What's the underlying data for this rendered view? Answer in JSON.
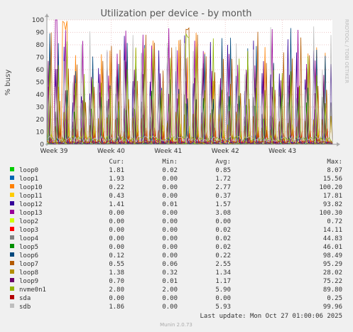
{
  "chart_data": {
    "type": "line",
    "title": "Utilization per device - by month",
    "ylabel": "% busy",
    "side_label": "RRDTOOL / TOBI OETIKER",
    "ylim": [
      0,
      100
    ],
    "yticks": [
      0,
      10,
      20,
      30,
      40,
      50,
      60,
      70,
      80,
      90,
      100
    ],
    "x_ticks": [
      "Week 39",
      "Week 40",
      "Week 41",
      "Week 42",
      "Week 43"
    ],
    "grid": true,
    "columns": [
      "Cur:",
      "Min:",
      "Avg:",
      "Max:"
    ],
    "series": [
      {
        "name": "loop0",
        "color": "#00cc00",
        "cur": "1.81",
        "min": "0.02",
        "avg": "0.85",
        "max": "8.07"
      },
      {
        "name": "loop1",
        "color": "#0066b3",
        "cur": "1.93",
        "min": "0.00",
        "avg": "1.72",
        "max": "15.56"
      },
      {
        "name": "loop10",
        "color": "#ff8000",
        "cur": "0.22",
        "min": "0.00",
        "avg": "2.77",
        "max": "100.20"
      },
      {
        "name": "loop11",
        "color": "#ffcc00",
        "cur": "0.43",
        "min": "0.00",
        "avg": "0.37",
        "max": "17.81"
      },
      {
        "name": "loop12",
        "color": "#330099",
        "cur": "1.41",
        "min": "0.01",
        "avg": "1.57",
        "max": "93.82"
      },
      {
        "name": "loop13",
        "color": "#990099",
        "cur": "0.00",
        "min": "0.00",
        "avg": "3.08",
        "max": "100.30"
      },
      {
        "name": "loop2",
        "color": "#ccff00",
        "cur": "0.00",
        "min": "0.00",
        "avg": "0.00",
        "max": "0.72"
      },
      {
        "name": "loop3",
        "color": "#ff0000",
        "cur": "0.00",
        "min": "0.00",
        "avg": "0.02",
        "max": "14.11"
      },
      {
        "name": "loop4",
        "color": "#808080",
        "cur": "0.00",
        "min": "0.00",
        "avg": "0.02",
        "max": "44.83"
      },
      {
        "name": "loop5",
        "color": "#008f00",
        "cur": "0.00",
        "min": "0.00",
        "avg": "0.02",
        "max": "46.01"
      },
      {
        "name": "loop6",
        "color": "#00487d",
        "cur": "0.12",
        "min": "0.00",
        "avg": "0.22",
        "max": "98.49"
      },
      {
        "name": "loop7",
        "color": "#b35a00",
        "cur": "0.55",
        "min": "0.06",
        "avg": "2.55",
        "max": "95.29"
      },
      {
        "name": "loop8",
        "color": "#b38f00",
        "cur": "1.38",
        "min": "0.32",
        "avg": "1.34",
        "max": "28.02"
      },
      {
        "name": "loop9",
        "color": "#6b006b",
        "cur": "0.70",
        "min": "0.01",
        "avg": "1.17",
        "max": "75.22"
      },
      {
        "name": "nvme0n1",
        "color": "#8fb300",
        "cur": "2.80",
        "min": "2.00",
        "avg": "5.90",
        "max": "89.80"
      },
      {
        "name": "sda",
        "color": "#b30000",
        "cur": "0.00",
        "min": "0.00",
        "avg": "0.00",
        "max": "0.25"
      },
      {
        "name": "sdb",
        "color": "#bebebe",
        "cur": "1.86",
        "min": "0.00",
        "avg": "5.93",
        "max": "99.96"
      }
    ],
    "last_update": "Last update: Mon Oct 27 01:00:06 2025",
    "footer": "Munin 2.0.73"
  }
}
